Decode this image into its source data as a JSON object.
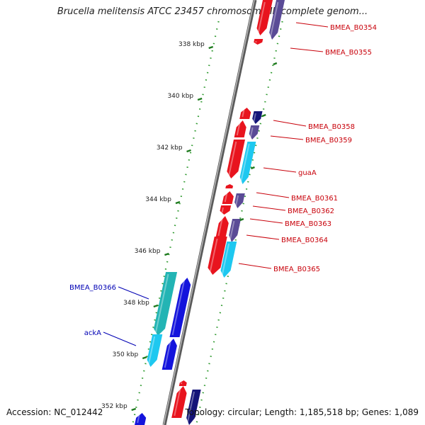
{
  "map": {
    "title": "Brucella melitensis ATCC 23457 chromosome II, complete genom...",
    "accession": "Accession: NC_012442",
    "topology": "Topology: circular; Length: 1,185,518 bp; Genes: 1,089"
  },
  "colors": {
    "backbone": "#808080",
    "tick": "#1e7a1e",
    "dots": "#2f9a2f",
    "forward_cds": "#e8141e",
    "reverse_cds": "#5a4b96",
    "aqua_cds": "#1ec8f0",
    "blue_cds": "#1414dc",
    "teal_cds": "#23b4b4",
    "label_red": "#c8000a",
    "label_blue": "#0000b4"
  },
  "ruler": [
    {
      "label": "338 kbp"
    },
    {
      "label": "340 kbp"
    },
    {
      "label": "342 kbp"
    },
    {
      "label": "344 kbp"
    },
    {
      "label": "346 kbp"
    },
    {
      "label": "348 kbp"
    },
    {
      "label": "350 kbp"
    },
    {
      "label": "352 kbp"
    }
  ],
  "gene_labels": [
    {
      "text": "BMEA_B0354",
      "color": "label_red"
    },
    {
      "text": "BMEA_B0355",
      "color": "label_red"
    },
    {
      "text": "BMEA_B0358",
      "color": "label_red"
    },
    {
      "text": "BMEA_B0359",
      "color": "label_red"
    },
    {
      "text": "guaA",
      "color": "label_red"
    },
    {
      "text": "BMEA_B0361",
      "color": "label_red"
    },
    {
      "text": "BMEA_B0362",
      "color": "label_red"
    },
    {
      "text": "BMEA_B0363",
      "color": "label_red"
    },
    {
      "text": "BMEA_B0364",
      "color": "label_red"
    },
    {
      "text": "BMEA_B0365",
      "color": "label_red"
    },
    {
      "text": "BMEA_B0366",
      "color": "label_blue"
    },
    {
      "text": "ackA",
      "color": "label_blue"
    }
  ]
}
